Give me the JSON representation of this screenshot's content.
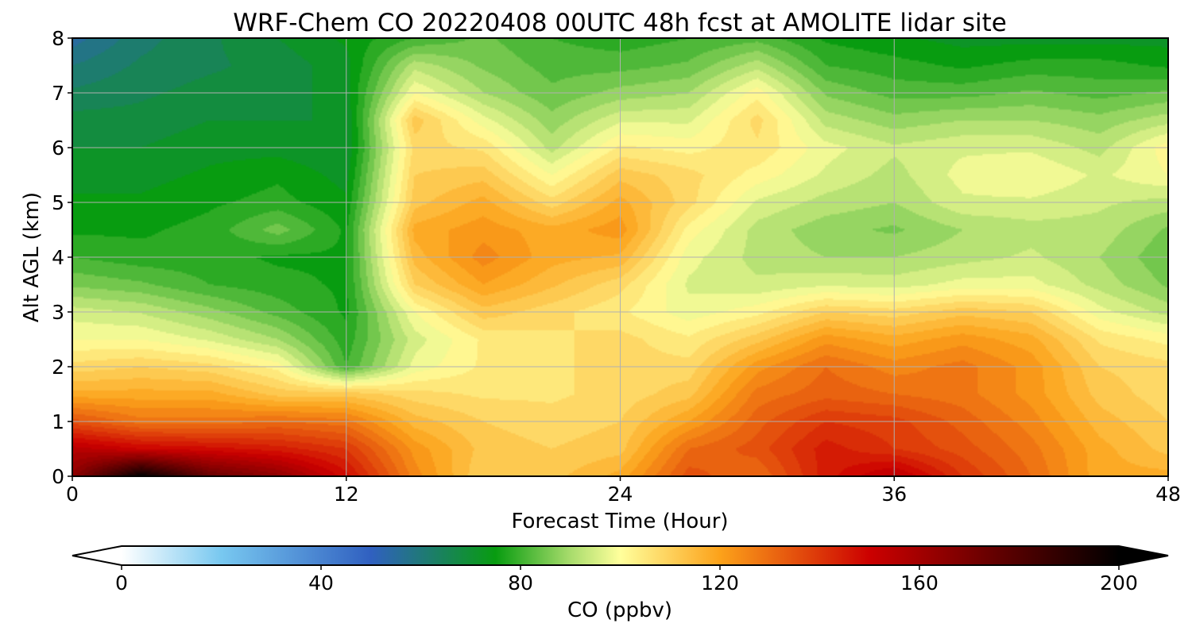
{
  "chart_data": {
    "type": "heatmap",
    "title": "WRF-Chem CO  20220408 00UTC 48h fcst at AMOLITE lidar site",
    "xlabel": "Forecast Time (Hour)",
    "ylabel": "Alt AGL (km)",
    "xlim": [
      0,
      48
    ],
    "ylim": [
      0,
      8
    ],
    "x_ticks": [
      0,
      12,
      24,
      36,
      48
    ],
    "y_ticks": [
      0,
      1,
      2,
      3,
      4,
      5,
      6,
      7,
      8
    ],
    "grid": true,
    "x_hours": [
      0,
      3,
      6,
      9,
      12,
      15,
      18,
      21,
      24,
      27,
      30,
      33,
      36,
      39,
      42,
      45,
      48
    ],
    "y_km": [
      0,
      0.5,
      1,
      1.5,
      2,
      2.5,
      3,
      3.5,
      4,
      4.5,
      5,
      5.5,
      6,
      6.5,
      7,
      7.5,
      8
    ],
    "values_ppbv": [
      [
        165,
        200,
        175,
        165,
        148,
        125,
        110,
        112,
        118,
        135,
        130,
        145,
        155,
        140,
        130,
        118,
        118
      ],
      [
        155,
        150,
        148,
        145,
        140,
        122,
        112,
        110,
        112,
        130,
        135,
        145,
        140,
        135,
        128,
        118,
        112
      ],
      [
        135,
        128,
        128,
        130,
        128,
        115,
        110,
        108,
        110,
        120,
        132,
        140,
        138,
        132,
        125,
        115,
        110
      ],
      [
        118,
        118,
        118,
        112,
        112,
        108,
        106,
        106,
        108,
        112,
        128,
        132,
        130,
        128,
        122,
        112,
        108
      ],
      [
        108,
        110,
        108,
        102,
        80,
        98,
        104,
        106,
        108,
        108,
        122,
        130,
        125,
        128,
        122,
        110,
        108
      ],
      [
        100,
        100,
        96,
        90,
        78,
        95,
        104,
        106,
        108,
        104,
        112,
        122,
        118,
        122,
        118,
        106,
        102
      ],
      [
        95,
        93,
        88,
        82,
        76,
        100,
        112,
        108,
        104,
        98,
        102,
        110,
        108,
        112,
        110,
        98,
        92
      ],
      [
        86,
        84,
        80,
        78,
        76,
        110,
        120,
        114,
        108,
        96,
        94,
        96,
        95,
        98,
        98,
        92,
        86
      ],
      [
        80,
        78,
        78,
        76,
        76,
        115,
        125,
        118,
        116,
        98,
        92,
        90,
        90,
        92,
        94,
        90,
        84
      ],
      [
        76,
        76,
        78,
        85,
        76,
        118,
        122,
        118,
        122,
        102,
        92,
        88,
        86,
        90,
        92,
        92,
        86
      ],
      [
        74,
        74,
        76,
        78,
        74,
        112,
        118,
        108,
        118,
        108,
        96,
        92,
        90,
        96,
        96,
        94,
        92
      ],
      [
        72,
        72,
        74,
        76,
        72,
        110,
        112,
        100,
        112,
        108,
        102,
        96,
        92,
        98,
        100,
        96,
        100
      ],
      [
        70,
        70,
        72,
        72,
        70,
        108,
        106,
        92,
        104,
        102,
        106,
        98,
        94,
        96,
        96,
        92,
        102
      ],
      [
        68,
        68,
        70,
        70,
        70,
        112,
        98,
        88,
        96,
        96,
        108,
        92,
        88,
        90,
        90,
        88,
        92
      ],
      [
        64,
        66,
        68,
        68,
        72,
        100,
        90,
        84,
        88,
        90,
        102,
        86,
        82,
        82,
        84,
        82,
        84
      ],
      [
        60,
        64,
        66,
        68,
        72,
        92,
        86,
        82,
        82,
        84,
        92,
        80,
        78,
        76,
        78,
        78,
        76
      ],
      [
        55,
        62,
        66,
        70,
        74,
        80,
        84,
        80,
        78,
        80,
        82,
        76,
        74,
        72,
        72,
        72,
        72
      ]
    ],
    "colorbar": {
      "label": "CO  (ppbv)",
      "min": 0,
      "max": 200,
      "ticks": [
        0,
        40,
        80,
        120,
        160,
        200
      ],
      "extend": "both",
      "orientation": "horizontal",
      "placement": "bottom",
      "color_stops": [
        {
          "value": 0,
          "color": "#ffffff"
        },
        {
          "value": 20,
          "color": "#78c8f0"
        },
        {
          "value": 50,
          "color": "#3060c0"
        },
        {
          "value": 75,
          "color": "#089c10"
        },
        {
          "value": 90,
          "color": "#a8dc6c"
        },
        {
          "value": 100,
          "color": "#ffff9c"
        },
        {
          "value": 120,
          "color": "#fca21a"
        },
        {
          "value": 150,
          "color": "#cc0000"
        },
        {
          "value": 175,
          "color": "#640000"
        },
        {
          "value": 200,
          "color": "#000000"
        }
      ]
    }
  }
}
